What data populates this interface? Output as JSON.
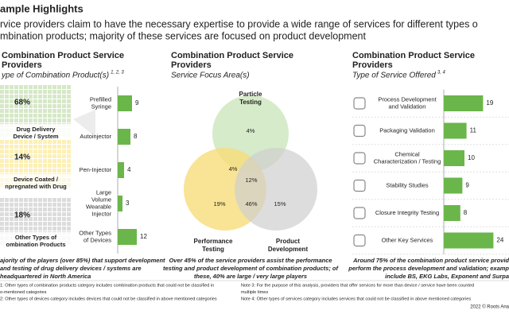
{
  "header": {
    "title": "ample Highlights",
    "subtitle": [
      "rvice providers claim to have the necessary expertise to provide a wide range of services for different types o",
      "mbination products; majority of these services are focused on product development"
    ]
  },
  "left": {
    "heading": [
      "Combination Product Service",
      "Providers"
    ],
    "subheading": "ype of Combination Product(s)",
    "subheading_sup": "1, 2, 3",
    "waffle": [
      {
        "percent": "68%",
        "label": [
          "Drug Delivery",
          "Device / System"
        ]
      },
      {
        "percent": "14%",
        "label": [
          "Device Coated /",
          "npregnated with Drug"
        ]
      },
      {
        "percent": "18%",
        "label": [
          "Other Types of",
          "ombination Products"
        ]
      }
    ],
    "bars": {
      "labels": [
        [
          "Prefilled",
          "Syringe"
        ],
        [
          "Autoinjector"
        ],
        [
          "Pen-Injector"
        ],
        [
          "Large",
          "Volume",
          "Wearable",
          "Injector"
        ],
        [
          "Other Types",
          "of Devices"
        ]
      ],
      "values": [
        9,
        8,
        4,
        3,
        12
      ]
    },
    "footnote": [
      "ajority of the players (over 85%) that support development",
      "and testing of drug delivery devices / systems are",
      "headquartered in North America"
    ]
  },
  "middle": {
    "heading": [
      "Combination Product Service",
      "Providers"
    ],
    "subheading": "Service Focus Area(s)",
    "circles": [
      [
        "Particle",
        "Testing"
      ],
      [
        "Performance",
        "Testing"
      ],
      [
        "Product",
        "Development"
      ]
    ],
    "regions": [
      "4%",
      "4%",
      "12%",
      "19%",
      "46%",
      "15%"
    ],
    "footnote": [
      "Over 45% of the service providers assist the performance",
      "testing and product development of combination products; of",
      "these, 40% are large / very large players"
    ]
  },
  "right": {
    "heading": [
      "Combination Product Service",
      "Providers"
    ],
    "subheading": "Type of Service Offered",
    "subheading_sup": "3, 4",
    "bars": {
      "labels": [
        [
          "Process Development",
          "and Validation"
        ],
        [
          "Packaging Validation"
        ],
        [
          "Chemical",
          "Characterization / Testing"
        ],
        [
          "Stability Studies"
        ],
        [
          "Closure Integrity Testing"
        ],
        [
          "Other Key Services"
        ]
      ],
      "values": [
        19,
        11,
        10,
        9,
        8,
        24
      ]
    },
    "footnote": [
      "Around 75% of the combination product service provid",
      "perform the process development and validation; examp",
      "include BS, EKG Labs, Exponent and Surpa"
    ]
  },
  "notes": {
    "left": [
      "1: Other types of combination products category includes combination products that could not be classified in",
      "o-mentioned categories",
      "2: Other types of devices category includes devices that could not be classified in above mentioned categories"
    ],
    "right": [
      "Note 3: For the purpose of this analysis, providers that offer services for more than device / service have been counted",
      "multiple times",
      "Note 4: Other types of services category includes services that could not be classified in above mentioned categories"
    ]
  },
  "source": "2022 © Roots Ana"
}
